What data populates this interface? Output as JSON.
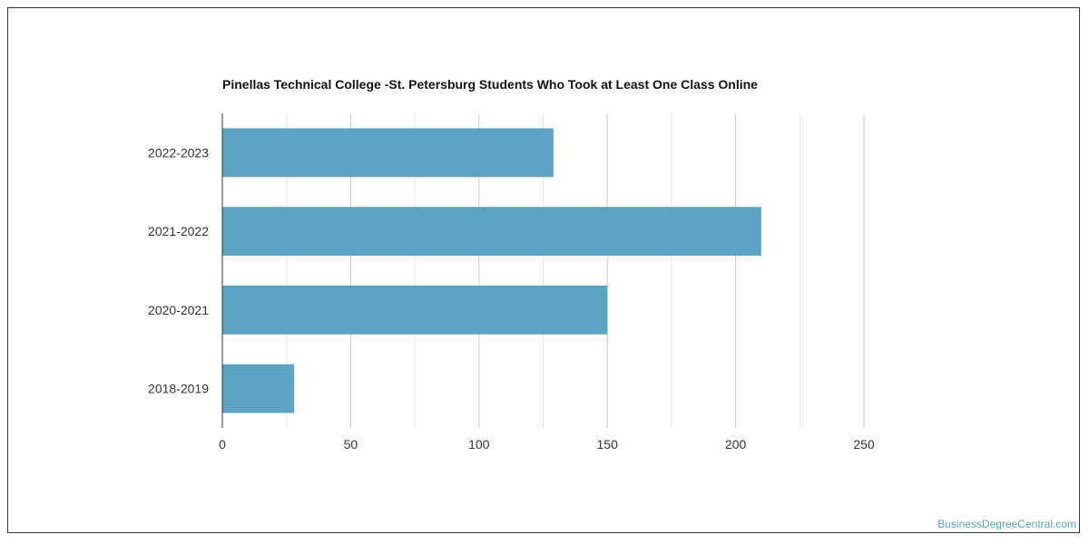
{
  "chart_data": {
    "type": "bar",
    "orientation": "horizontal",
    "title": "Pinellas Technical College -St. Petersburg Students Who Took at Least One Class Online",
    "categories": [
      "2022-2023",
      "2021-2022",
      "2020-2021",
      "2018-2019"
    ],
    "values": [
      129,
      210,
      150,
      28
    ],
    "xlim": [
      0,
      250
    ],
    "x_ticks": [
      0,
      50,
      100,
      150,
      200,
      250
    ],
    "grid": true,
    "bar_color": "#5ba3c0",
    "legend": "none"
  },
  "credit": "BusinessDegreeCentral.com"
}
